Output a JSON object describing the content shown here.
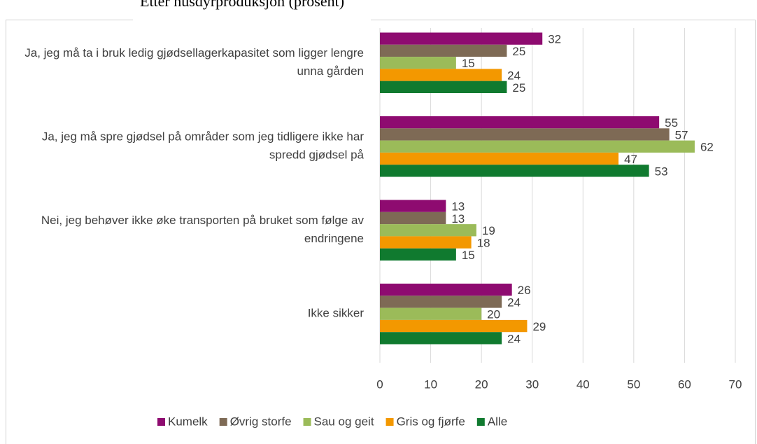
{
  "chart_data": {
    "type": "bar",
    "orientation": "horizontal",
    "title": "Etter husdyrproduksjon (prosent)",
    "categories": [
      "Ja, jeg må ta i bruk ledig gjødsellagerkapasitet som ligger lengre unna gården",
      "Ja, jeg må spre gjødsel på områder som jeg tidligere ikke har spredd gjødsel på",
      "Nei, jeg behøver ikke øke transporten på bruket som følge av endringene",
      "Ikke sikker"
    ],
    "series": [
      {
        "name": "Kumelk",
        "color": "#8e0b70",
        "values": [
          32,
          55,
          13,
          26
        ]
      },
      {
        "name": "Øvrig storfe",
        "color": "#7e6a55",
        "values": [
          25,
          57,
          13,
          24
        ]
      },
      {
        "name": "Sau og geit",
        "color": "#9bbb59",
        "values": [
          15,
          62,
          19,
          20
        ]
      },
      {
        "name": "Gris og fjørfe",
        "color": "#f39800",
        "values": [
          24,
          47,
          18,
          29
        ]
      },
      {
        "name": "Alle",
        "color": "#107a2f",
        "values": [
          25,
          53,
          15,
          24
        ]
      }
    ],
    "xlim": [
      0,
      70
    ],
    "xticks": [
      0,
      10,
      20,
      30,
      40,
      50,
      60,
      70
    ],
    "grid": true,
    "legend": "bottom"
  }
}
